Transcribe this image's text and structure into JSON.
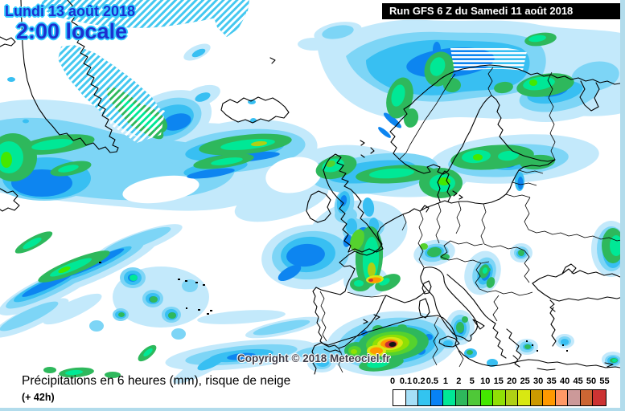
{
  "header": {
    "date_line1": "Lundi 13 août 2018",
    "time_line": "2:00 locale",
    "run_label": "Run GFS 6 Z du Samedi 11 août 2018"
  },
  "map": {
    "copyright": "Copyright © 2018 Meteociel.fr"
  },
  "footer": {
    "caption": "Précipitations en 6 heures (mm), risque de neige",
    "forecast_step": "(+ 42h)"
  },
  "legend": {
    "unit_labels": [
      "0",
      "0.1",
      "0.2",
      "0.5",
      "1",
      "2",
      "5",
      "10",
      "15",
      "20",
      "25",
      "30",
      "35",
      "40",
      "45",
      "50",
      "55"
    ],
    "colors": [
      "#ffffff",
      "#a5dff7",
      "#33c4f0",
      "#0782f5",
      "#00e896",
      "#2eb85c",
      "#4fc838",
      "#44e800",
      "#90e005",
      "#afd014",
      "#d8e812",
      "#cc9900",
      "#ff9900",
      "#ff9966",
      "#cc9999",
      "#cc6633",
      "#cc3333"
    ]
  },
  "theme": {
    "frame_color": "#b2dcec",
    "date_text_color": "#1d2fd0",
    "date_outline_color": "#33ccff",
    "run_bar_bg": "#000000",
    "run_bar_text": "#ffffff"
  }
}
